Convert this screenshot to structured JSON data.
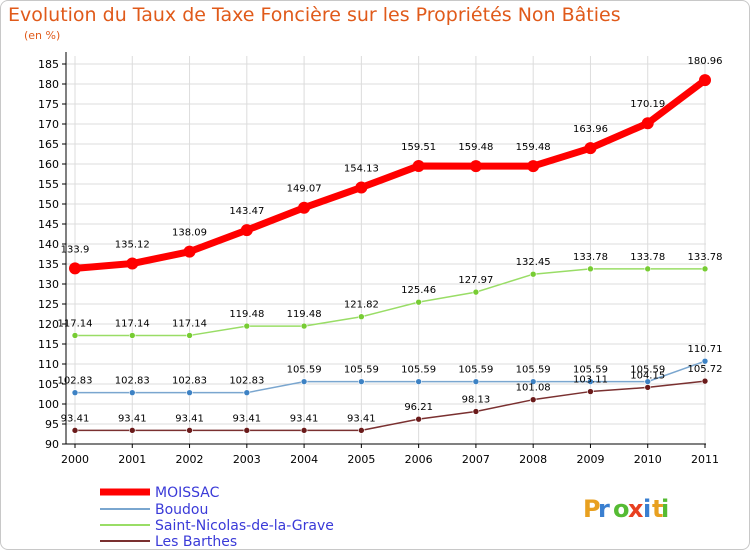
{
  "title": "Evolution du Taux de Taxe Foncière sur les Propriétés Non Bâties",
  "subtitle": "(en %)",
  "logo": {
    "text": "Proxiti"
  },
  "colors": {
    "grid": "#dcdcdc",
    "axis": "#000000",
    "title": "#e05a1a",
    "legend_text": "#3a3ad8"
  },
  "chart_data": {
    "type": "line",
    "title": "Evolution du Taux de Taxe Foncière sur les Propriétés Non Bâties",
    "ylabel": "(en %)",
    "xlabel": "",
    "x": [
      "2000",
      "2001",
      "2002",
      "2003",
      "2004",
      "2005",
      "2006",
      "2007",
      "2008",
      "2009",
      "2010",
      "2011"
    ],
    "ylim": [
      90,
      187
    ],
    "yticks": [
      90,
      95,
      100,
      105,
      110,
      115,
      120,
      125,
      130,
      135,
      140,
      145,
      150,
      155,
      160,
      165,
      170,
      175,
      180,
      185
    ],
    "grid": true,
    "legend_position": "bottom-left",
    "series": [
      {
        "name": "MOISSAC",
        "color": "#ff0000",
        "width": 7,
        "marker_radius": 6,
        "values": [
          133.9,
          135.12,
          138.09,
          143.47,
          149.07,
          154.13,
          159.51,
          159.48,
          159.48,
          163.96,
          170.19,
          180.96
        ],
        "labels": [
          "133.9",
          "135.12",
          "138.09",
          "143.47",
          "149.07",
          "154.13",
          "159.51",
          "159.48",
          "159.48",
          "163.96",
          "170.19",
          "180.96"
        ]
      },
      {
        "name": "Boudou",
        "color": "#7aa6cf",
        "dot_color": "#3d82c4",
        "width": 1.5,
        "marker_radius": 3,
        "values": [
          102.83,
          102.83,
          102.83,
          102.83,
          105.59,
          105.59,
          105.59,
          105.59,
          105.59,
          105.59,
          105.59,
          110.71
        ],
        "labels": [
          "102.83",
          "102.83",
          "102.83",
          "102.83",
          "105.59",
          "105.59",
          "105.59",
          "105.59",
          "105.59",
          "105.59",
          "105.59",
          "110.71"
        ]
      },
      {
        "name": "Saint-Nicolas-de-la-Grave",
        "color": "#99dd66",
        "dot_color": "#77cc33",
        "width": 1.5,
        "marker_radius": 3,
        "values": [
          117.14,
          117.14,
          117.14,
          119.48,
          119.48,
          121.82,
          125.46,
          127.97,
          132.45,
          133.78,
          133.78,
          133.78
        ],
        "labels": [
          "117.14",
          "117.14",
          "117.14",
          "119.48",
          "119.48",
          "121.82",
          "125.46",
          "127.97",
          "132.45",
          "133.78",
          "133.78",
          "133.78"
        ]
      },
      {
        "name": "Les Barthes",
        "color": "#7a3030",
        "dot_color": "#6a1a1a",
        "width": 1.5,
        "marker_radius": 3,
        "values": [
          93.41,
          93.41,
          93.41,
          93.41,
          93.41,
          93.41,
          96.21,
          98.13,
          101.08,
          103.11,
          104.15,
          105.72
        ],
        "labels": [
          "93.41",
          "93.41",
          "93.41",
          "93.41",
          "93.41",
          "93.41",
          "96.21",
          "98.13",
          "101.08",
          "103.11",
          "104.15",
          "105.72"
        ]
      }
    ]
  }
}
